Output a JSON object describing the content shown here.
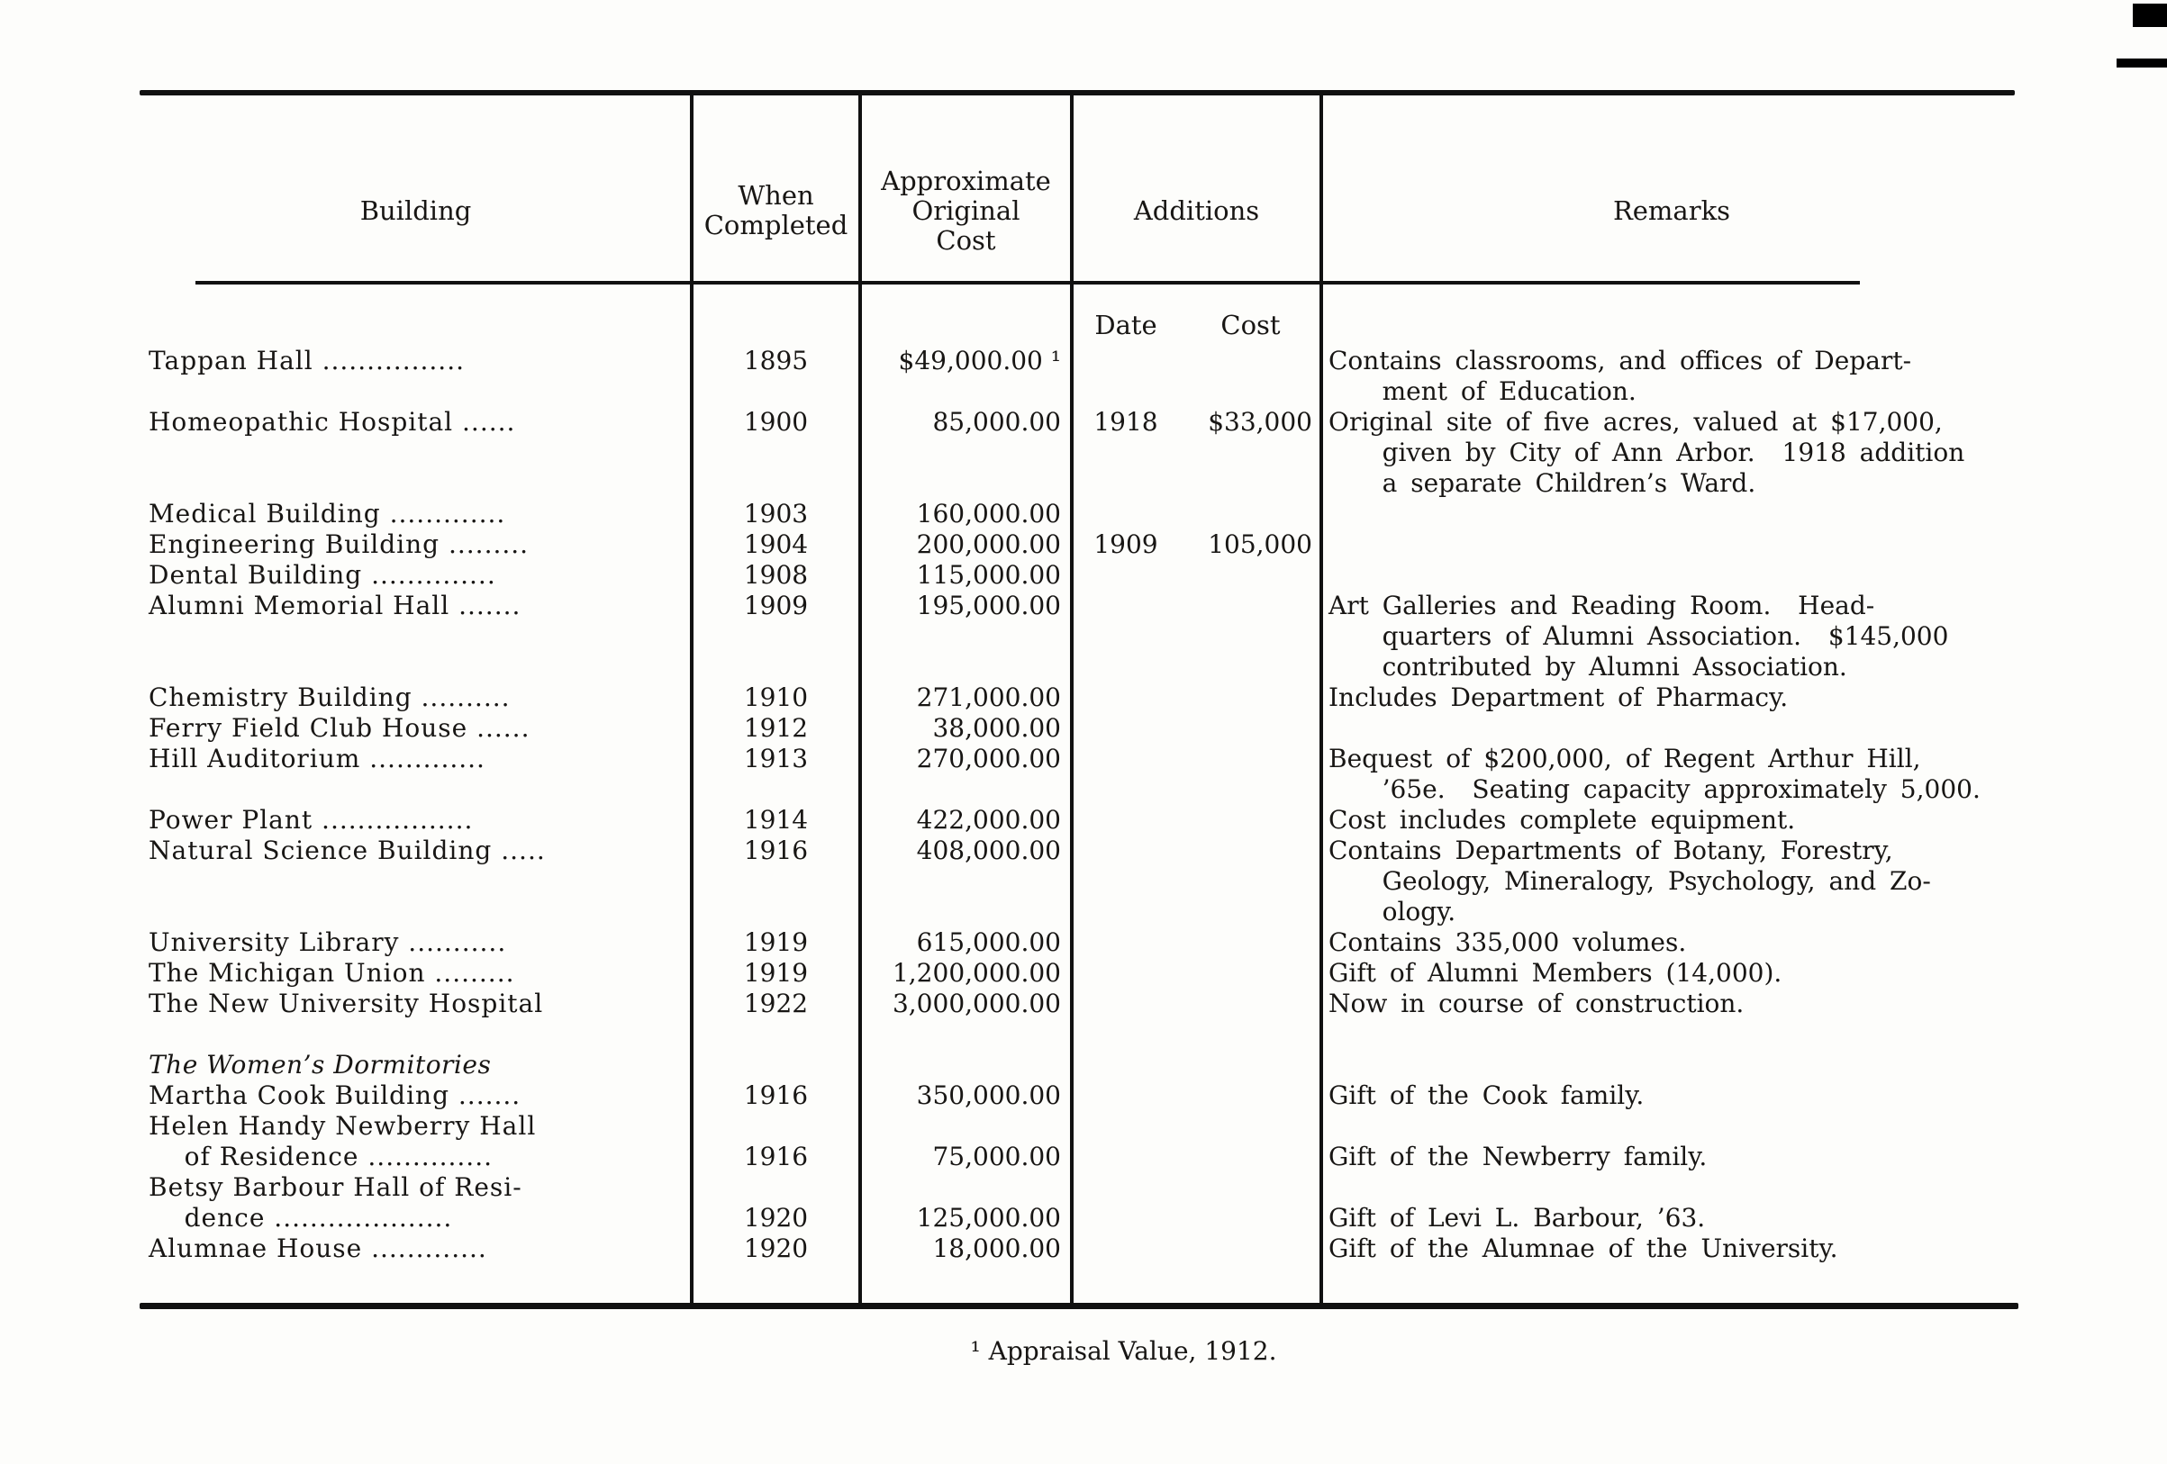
{
  "page": {
    "background": "#fdfdfb",
    "ink": "#181614"
  },
  "table": {
    "headers": {
      "building": "Building",
      "when_completed": "When\nCompleted",
      "cost": "Approximate\nOriginal\nCost",
      "additions": "Additions",
      "remarks": "Remarks"
    },
    "additions_subheaders": {
      "date": "Date",
      "cost": "Cost"
    },
    "rows": [
      {
        "building": "Tappan Hall ................",
        "when": "1895",
        "cost": "$49,000.00 ¹",
        "remarks": "Contains classrooms, and offices of Depart-\n    ment of Education."
      },
      {
        "building": "Homeopathic Hospital ......",
        "when": "1900",
        "cost": "85,000.00",
        "add_date": "1918",
        "add_cost": "$33,000",
        "remarks": "Original site of five acres, valued at $17,000,\n    given by City of Ann Arbor.  1918 addition\n    a separate Children’s Ward."
      },
      {
        "building": "Medical Building .............",
        "when": "1903",
        "cost": "160,000.00"
      },
      {
        "building": "Engineering Building .........",
        "when": "1904",
        "cost": "200,000.00",
        "add_date": "1909",
        "add_cost": "105,000"
      },
      {
        "building": "Dental Building ..............",
        "when": "1908",
        "cost": "115,000.00"
      },
      {
        "building": "Alumni Memorial Hall .......",
        "when": "1909",
        "cost": "195,000.00",
        "remarks": "Art Galleries and Reading Room.  Head-\n    quarters of Alumni Association.  $145,000\n    contributed by Alumni Association."
      },
      {
        "building": "Chemistry Building ..........",
        "when": "1910",
        "cost": "271,000.00",
        "remarks": "Includes Department of Pharmacy."
      },
      {
        "building": "Ferry Field Club House ......",
        "when": "1912",
        "cost": "38,000.00"
      },
      {
        "building": "Hill Auditorium .............",
        "when": "1913",
        "cost": "270,000.00",
        "remarks": "Bequest of $200,000, of Regent Arthur Hill,\n    ’65e.  Seating capacity approximately 5,000."
      },
      {
        "building": "Power Plant .................",
        "when": "1914",
        "cost": "422,000.00",
        "remarks": "Cost includes complete equipment."
      },
      {
        "building": "Natural Science Building .....",
        "when": "1916",
        "cost": "408,000.00",
        "remarks": "Contains Departments of Botany, Forestry,\n    Geology, Mineralogy, Psychology, and Zo-\n    ology."
      },
      {
        "building": "University Library ...........",
        "when": "1919",
        "cost": "615,000.00",
        "remarks": "Contains 335,000 volumes."
      },
      {
        "building": "The Michigan Union .........",
        "when": "1919",
        "cost": "1,200,000.00",
        "remarks": "Gift of Alumni Members (14,000)."
      },
      {
        "building": "The New University Hospital",
        "when": "1922",
        "cost": "3,000,000.00",
        "remarks": "Now in course of construction."
      },
      {
        "building": "The Women’s Dormitories",
        "italic": true,
        "gap_before": true
      },
      {
        "building": "Martha Cook Building .......",
        "when": "1916",
        "cost": "350,000.00",
        "remarks": "Gift of the Cook family."
      },
      {
        "building": "Helen Handy Newberry Hall\n    of Residence ..............",
        "when": "1916",
        "cost": "75,000.00",
        "remarks": "Gift of the Newberry family.",
        "offset": true
      },
      {
        "building": "Betsy Barbour Hall of Resi-\n    dence ....................",
        "when": "1920",
        "cost": "125,000.00",
        "remarks": "Gift of Levi L. Barbour, ’63.",
        "offset": true
      },
      {
        "building": "Alumnae House .............",
        "when": "1920",
        "cost": "18,000.00",
        "remarks": "Gift of the Alumnae of the University."
      }
    ]
  },
  "footnote": {
    "text": "¹ Appraisal Value, 1912."
  }
}
